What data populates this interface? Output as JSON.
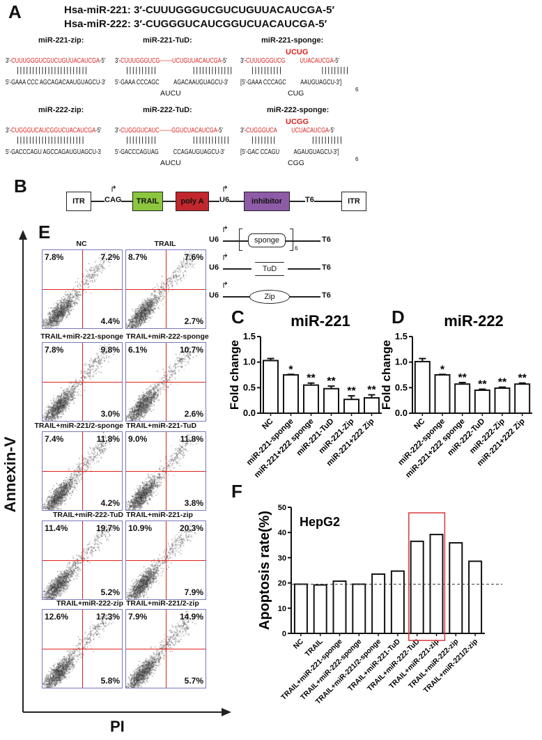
{
  "panel_labels": {
    "a": "A",
    "b": "B",
    "c": "C",
    "d": "D",
    "e": "E",
    "f": "F"
  },
  "panelA": {
    "hsa221_label": "Hsa-miR-221:",
    "hsa221_seq": "3′-CUUUGGGUCGUCUGUUACAUCGA-5′",
    "hsa222_label": "Hsa-miR-222:",
    "hsa222_seq": "3′-CUGGGUCAUCGGUCUACAUCGA-5′",
    "constructs": [
      {
        "title": "miR-221-zip:",
        "top_pre": "3′-",
        "top_red": "CUUUGGGUCGUCUGUUACAUCGA",
        "top_post": "-5′",
        "bars": "|||||||||||||||||||||||",
        "bottom": "5′-GAAA CCC AGCAGACAAUGUAGCU-3′",
        "loop": ""
      },
      {
        "title": "miR-221-TuD:",
        "top_pre": "3′-",
        "top_red": "CUUUGGGUCG-------UCUGUUACAUCGA",
        "top_post": "-5′",
        "bars": "||||||||||           |||||||||||||",
        "bottom": "5′-GAAA CCCAGC          AGACAAUGUAGCU-3′",
        "loop": "AUCU"
      },
      {
        "title": "miR-221-sponge:",
        "bulge": "UCUG",
        "top_pre": "3′-",
        "top_red": "CUUUGGGUCG          UUACAUCGA",
        "top_post": "-5′",
        "bars": "||||||||||            |||||||||",
        "bottom": "[5′-GAAA CCCAGC          AAUGUAGCU-3′]",
        "repeat": "6",
        "loop": "CUG"
      },
      {
        "title": "miR-222-zip:",
        "top_pre": "3′-",
        "top_red": "CUGGGUCAUCGGUCUACAUCGA",
        "top_post": "-5′",
        "bars": "||||||||||||||||||||||",
        "bottom": "5′-GACCCAGU AGCCAGAUGUAGCU-3",
        "loop": ""
      },
      {
        "title": "miR-222-TuD:",
        "top_pre": "3′-",
        "top_red": "CUGGGUCAUC-------GGUCUACAUCGA",
        "top_post": "-5′",
        "bars": "||||||||||           ||||||||||||",
        "bottom": "5′-GACCCAGUAG          CCAGAUGUAGCU-3′",
        "loop": "AUCU"
      },
      {
        "title": "miR-222-sponge:",
        "bulge": "UCGG",
        "top_pre": "3′-",
        "top_red": "CUGGGUCA          UCUACAUCGA",
        "top_post": "-5′",
        "bars": "||||||||           ||||||||||",
        "bottom": "[5′-GAC CCAGU          AGAUGUAGCU-3′]",
        "repeat": "6",
        "loop": "CGG"
      }
    ]
  },
  "panelB": {
    "itr": "ITR",
    "cag": "CAG",
    "trail": "TRAIL",
    "polya": "poly A",
    "u6": "U6",
    "inhibitor": "inhibitor",
    "t6": "T6",
    "itr2": "ITR",
    "colors": {
      "trail": "#8cc63f",
      "polya": "#c1272d",
      "inhibitor": "#8e5ba6"
    },
    "schematics": [
      {
        "promoter": "U6",
        "element": "sponge",
        "terminator": "T6",
        "repeat": "6"
      },
      {
        "promoter": "U6",
        "element": "TuD",
        "terminator": "T6"
      },
      {
        "promoter": "U6",
        "element": "Zip",
        "terminator": "T6"
      }
    ]
  },
  "panelE": {
    "y_axis": "Annexin-V",
    "x_axis": "PI",
    "plots": [
      {
        "label": "NC",
        "ul": "7.8%",
        "ur": "7.2%",
        "lr": "4.4%"
      },
      {
        "label": "TRAIL",
        "ul": "8.7%",
        "ur": "7.6%",
        "lr": "2.7%"
      },
      {
        "label": "TRAIL+miR-221-sponge",
        "ul": "7.8%",
        "ur": "9.8%",
        "lr": "3.0%"
      },
      {
        "label": "TRAIL+miR-222-sponge",
        "ul": "6.1%",
        "ur": "10.7%",
        "lr": "2.6%"
      },
      {
        "label": "TRAIL+miR-221/2-sponge",
        "ul": "7.4%",
        "ur": "11.8%",
        "lr": "4.2%"
      },
      {
        "label": "TRAIL+miR-221-TuD",
        "ul": "9.0%",
        "ur": "11.8%",
        "lr": "3.8%"
      },
      {
        "label": "TRAIL+miR-222-TuD",
        "ul": "11.4%",
        "ur": "19.7%",
        "lr": "5.2%"
      },
      {
        "label": "TRAIL+miR-221-zip",
        "ul": "10.9%",
        "ur": "20.3%",
        "lr": "7.9%"
      },
      {
        "label": "TRAIL+miR-222-zip",
        "ul": "12.6%",
        "ur": "17.3%",
        "lr": "5.8%"
      },
      {
        "label": "TRAIL+miR-221/2-zip",
        "ul": "7.9%",
        "ur": "14.9%",
        "lr": "5.7%"
      }
    ]
  },
  "chart_data": [
    {
      "type": "bar",
      "title": "miR-221",
      "ylabel": "Fold change",
      "ylim": [
        0,
        1.5
      ],
      "yticks": [
        "0.0",
        "0.5",
        "1.0",
        "1.5"
      ],
      "categories": [
        "NC",
        "miR-221-sponge",
        "miR-221+222 sponge",
        "miR-221-TuD",
        "miR-221-Zip",
        "miR-221+222 Zip"
      ],
      "values": [
        1.03,
        0.75,
        0.55,
        0.48,
        0.27,
        0.3
      ],
      "errors": [
        0.04,
        0.01,
        0.04,
        0.05,
        0.07,
        0.06
      ],
      "significance": [
        "",
        "*",
        "**",
        "**",
        "**",
        "**"
      ]
    },
    {
      "type": "bar",
      "title": "miR-222",
      "ylabel": "Fold change",
      "ylim": [
        0,
        1.5
      ],
      "yticks": [
        "0.0",
        "0.5",
        "1.0",
        "1.5"
      ],
      "categories": [
        "NC",
        "miR-222-sponge",
        "miR-221+222 sponge",
        "miR-222-TuD",
        "miR-222-Zip",
        "miR-221+222 Zip"
      ],
      "values": [
        1.01,
        0.75,
        0.57,
        0.45,
        0.49,
        0.57
      ],
      "errors": [
        0.06,
        0.01,
        0.03,
        0.02,
        0.02,
        0.02
      ],
      "significance": [
        "",
        "*",
        "**",
        "**",
        "**",
        "**"
      ]
    },
    {
      "type": "bar",
      "title": "HepG2",
      "ylabel": "Apoptosis rate(%)",
      "ylim": [
        0,
        50
      ],
      "yticks": [
        "0",
        "10",
        "20",
        "30",
        "40",
        "50"
      ],
      "categories": [
        "NC",
        "TRAIL",
        "TRAIL+miR-221-sponge",
        "TRAIL+miR-222-sponge",
        "TRAIL+miR-221/2-sponge",
        "TRAIL+miR-221-TuD",
        "TRAIL+miR-222-TuD",
        "TRAIL+miR-221-zip",
        "TRAIL+miR-222-zip",
        "TRAIL+miR-221/2-zip"
      ],
      "values": [
        19.5,
        19.2,
        20.7,
        19.5,
        23.5,
        24.7,
        36.5,
        39.2,
        35.9,
        28.6
      ],
      "reference_line": 19.5,
      "highlighted": [
        "TRAIL+miR-222-TuD",
        "TRAIL+miR-221-zip"
      ],
      "highlight_color": "#d9383a"
    }
  ]
}
